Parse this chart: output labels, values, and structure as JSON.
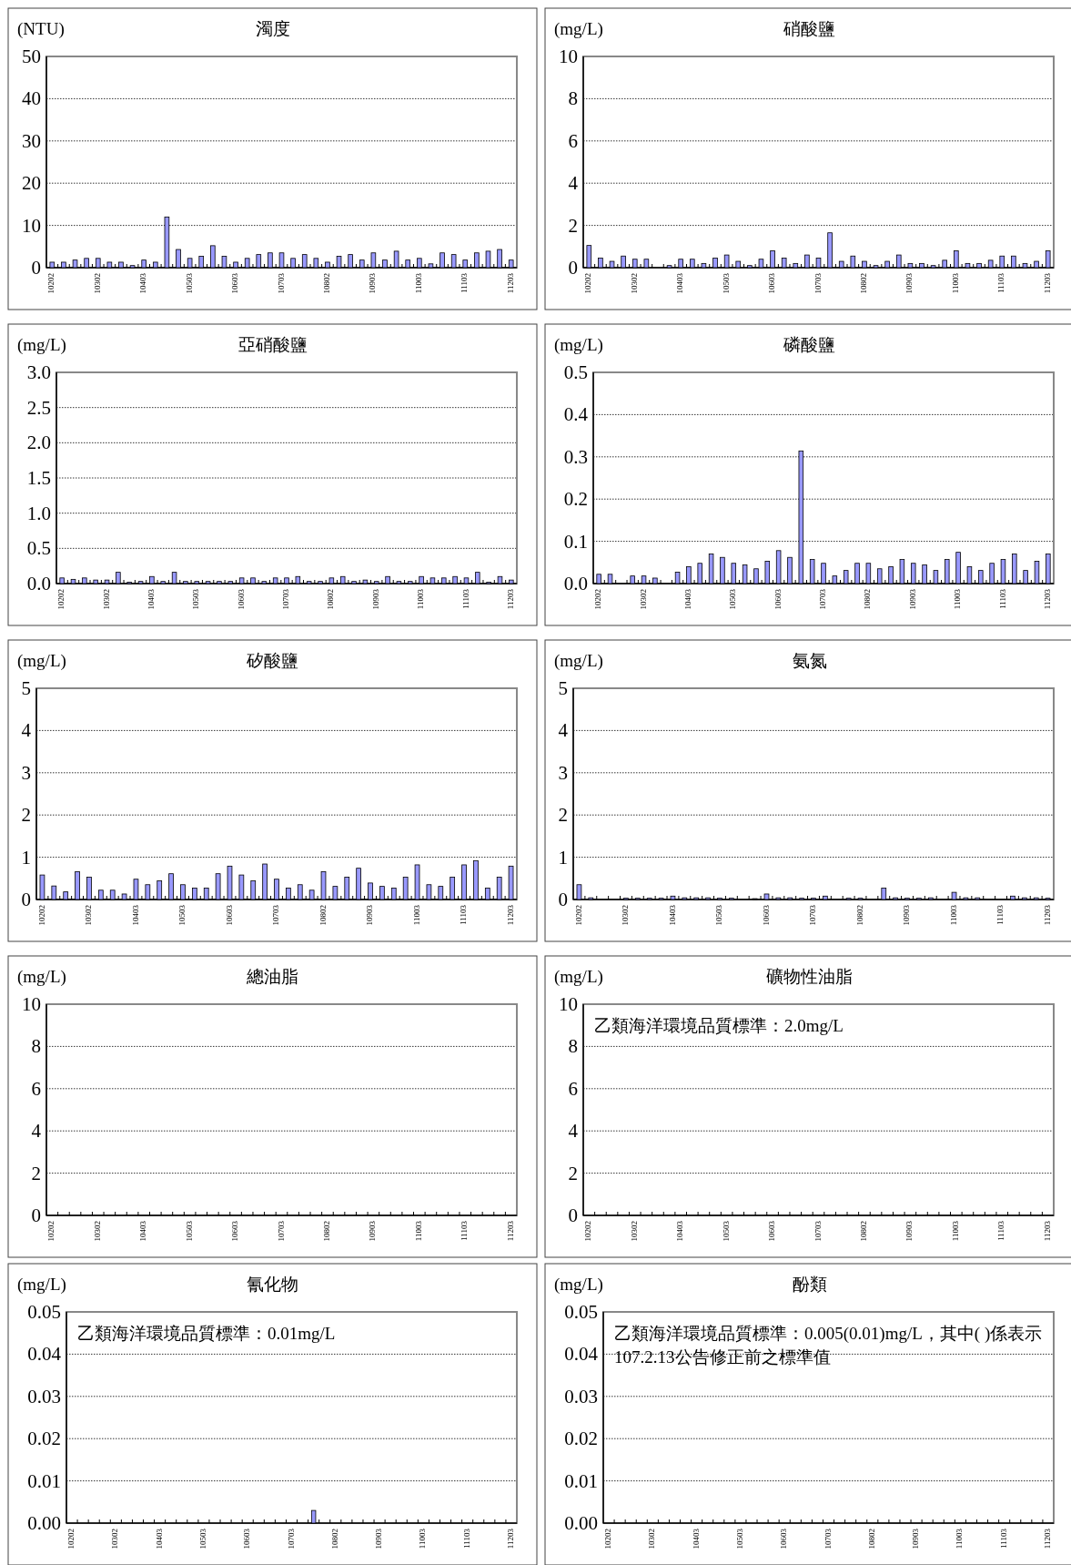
{
  "chart_data": [
    {
      "type": "bar",
      "title": "濁度",
      "ylabel": "(NTU)",
      "color": "#9999ff",
      "grid": "y",
      "ylim": [
        0,
        50
      ],
      "yticks": [
        0,
        10,
        20,
        30,
        40,
        50
      ],
      "categories": [
        "10202",
        null,
        null,
        null,
        "10302",
        null,
        null,
        null,
        "10403",
        null,
        null,
        null,
        "10503",
        null,
        null,
        null,
        "10603",
        null,
        null,
        null,
        "10703",
        null,
        null,
        null,
        "10802",
        null,
        null,
        null,
        "10903",
        null,
        null,
        null,
        "11003",
        null,
        null,
        null,
        "11103",
        null,
        null,
        null,
        "11203"
      ],
      "values": [
        1.3,
        1.3,
        1.8,
        2.2,
        2.2,
        1.3,
        1.3,
        0.5,
        1.8,
        1.3,
        12,
        4.3,
        2.2,
        2.7,
        5.2,
        2.7,
        1.3,
        2.2,
        3.1,
        3.5,
        3.5,
        2.2,
        3.1,
        2.2,
        1.3,
        2.7,
        3.1,
        1.8,
        3.5,
        1.8,
        3.9,
        1.8,
        2.2,
        0.9,
        3.5,
        3.1,
        1.8,
        3.5,
        3.9,
        4.3,
        1.8
      ]
    },
    {
      "type": "bar",
      "title": "硝酸鹽",
      "ylabel": "(mg/L)",
      "color": "#9999ff",
      "grid": "y",
      "ylim": [
        0,
        10
      ],
      "yticks": [
        0,
        2,
        4,
        6,
        8,
        10
      ],
      "categories": [
        "10202",
        null,
        null,
        null,
        "10302",
        null,
        null,
        null,
        "10403",
        null,
        null,
        null,
        "10503",
        null,
        null,
        null,
        "10603",
        null,
        null,
        null,
        "10703",
        null,
        null,
        null,
        "10802",
        null,
        null,
        null,
        "10903",
        null,
        null,
        null,
        "11003",
        null,
        null,
        null,
        "11103",
        null,
        null,
        null,
        "11203"
      ],
      "values": [
        1.05,
        0.45,
        0.3,
        0.55,
        0.4,
        0.4,
        null,
        0.1,
        0.4,
        0.4,
        0.2,
        0.45,
        0.6,
        0.3,
        0.1,
        0.4,
        0.8,
        0.45,
        0.2,
        0.6,
        0.45,
        1.65,
        0.3,
        0.55,
        0.3,
        0.1,
        0.3,
        0.6,
        0.2,
        0.2,
        0.1,
        0.35,
        0.8,
        0.2,
        0.2,
        0.35,
        0.55,
        0.55,
        0.2,
        0.3,
        0.8
      ]
    },
    {
      "type": "bar",
      "title": "亞硝酸鹽",
      "ylabel": "(mg/L)",
      "color": "#9999ff",
      "grid": "y",
      "ylim": [
        0,
        3
      ],
      "yticks": [
        {
          "value": 0,
          "label": "0.0"
        },
        0.5,
        {
          "value": 1,
          "label": "1.0"
        },
        1.5,
        {
          "value": 2,
          "label": "2.0"
        },
        2.5,
        {
          "value": 3,
          "label": "3.0"
        }
      ],
      "categories": [
        "10202",
        null,
        null,
        null,
        "10302",
        null,
        null,
        null,
        "10403",
        null,
        null,
        null,
        "10503",
        null,
        null,
        null,
        "10603",
        null,
        null,
        null,
        "10703",
        null,
        null,
        null,
        "10802",
        null,
        null,
        null,
        "10903",
        null,
        null,
        null,
        "11003",
        null,
        null,
        null,
        "11103",
        null,
        null,
        null,
        "11203"
      ],
      "values": [
        0.08,
        0.06,
        0.08,
        0.05,
        0.05,
        0.16,
        0.02,
        0.03,
        0.1,
        0.03,
        0.16,
        0.03,
        0.03,
        0.03,
        0.03,
        0.03,
        0.08,
        0.08,
        0.03,
        0.08,
        0.08,
        0.1,
        0.03,
        0.03,
        0.08,
        0.1,
        0.03,
        0.05,
        0.03,
        0.1,
        0.03,
        0.03,
        0.1,
        0.08,
        0.08,
        0.1,
        0.08,
        0.16,
        0.02,
        0.1,
        0.05
      ]
    },
    {
      "type": "bar",
      "title": "磷酸鹽",
      "ylabel": "(mg/L)",
      "color": "#9999ff",
      "grid": "y",
      "ylim": [
        0,
        0.5
      ],
      "yticks": [
        {
          "value": 0,
          "label": "0.0"
        },
        0.1,
        0.2,
        0.3,
        0.4,
        0.5
      ],
      "categories": [
        "10202",
        null,
        null,
        null,
        "10302",
        null,
        null,
        null,
        "10403",
        null,
        null,
        null,
        "10503",
        null,
        null,
        null,
        "10603",
        null,
        null,
        null,
        "10703",
        null,
        null,
        null,
        "10802",
        null,
        null,
        null,
        "10903",
        null,
        null,
        null,
        "11003",
        null,
        null,
        null,
        "11103",
        null,
        null,
        null,
        "11203"
      ],
      "values": [
        0.022,
        0.022,
        null,
        0.018,
        0.018,
        0.013,
        null,
        0.027,
        0.04,
        0.048,
        0.07,
        0.062,
        0.048,
        0.044,
        0.035,
        0.053,
        0.078,
        0.062,
        0.314,
        0.057,
        0.048,
        0.018,
        0.031,
        0.048,
        0.048,
        0.035,
        0.04,
        0.057,
        0.048,
        0.044,
        0.031,
        0.057,
        0.074,
        0.04,
        0.031,
        0.048,
        0.057,
        0.07,
        0.031,
        0.053,
        0.07
      ]
    },
    {
      "type": "bar",
      "title": "矽酸鹽",
      "ylabel": "(mg/L)",
      "color": "#9999ff",
      "grid": "y",
      "ylim": [
        0,
        5
      ],
      "yticks": [
        0,
        1,
        2,
        3,
        4,
        5
      ],
      "categories": [
        "10202",
        null,
        null,
        null,
        "10302",
        null,
        null,
        null,
        "10403",
        null,
        null,
        null,
        "10503",
        null,
        null,
        null,
        "10603",
        null,
        null,
        null,
        "10703",
        null,
        null,
        null,
        "10802",
        null,
        null,
        null,
        "10903",
        null,
        null,
        null,
        "11003",
        null,
        null,
        null,
        "11103",
        null,
        null,
        null,
        "11203"
      ],
      "values": [
        0.58,
        0.32,
        0.18,
        0.66,
        0.53,
        0.22,
        0.22,
        0.13,
        0.48,
        0.35,
        0.44,
        0.61,
        0.35,
        0.27,
        0.27,
        0.61,
        0.79,
        0.58,
        0.44,
        0.84,
        0.48,
        0.27,
        0.35,
        0.22,
        0.66,
        0.31,
        0.53,
        0.74,
        0.39,
        0.31,
        0.27,
        0.53,
        0.82,
        0.35,
        0.31,
        0.53,
        0.82,
        0.92,
        0.27,
        0.53,
        0.79
      ]
    },
    {
      "type": "bar",
      "title": "氨氮",
      "ylabel": "(mg/L)",
      "color": "#9999ff",
      "grid": "y",
      "ylim": [
        0,
        5
      ],
      "yticks": [
        0,
        1,
        2,
        3,
        4,
        5
      ],
      "categories": [
        "10202",
        null,
        null,
        null,
        "10302",
        null,
        null,
        null,
        "10403",
        null,
        null,
        null,
        "10503",
        null,
        null,
        null,
        "10603",
        null,
        null,
        null,
        "10703",
        null,
        null,
        null,
        "10802",
        null,
        null,
        null,
        "10903",
        null,
        null,
        null,
        "11003",
        null,
        null,
        null,
        "11103",
        null,
        null,
        null,
        "11203"
      ],
      "values": [
        0.35,
        0.04,
        null,
        null,
        0.03,
        0.03,
        0.03,
        0.03,
        0.08,
        0.04,
        0.04,
        0.04,
        0.03,
        0.03,
        null,
        0.02,
        0.13,
        0.04,
        0.04,
        0.03,
        0.03,
        0.08,
        null,
        0.03,
        0.03,
        null,
        0.27,
        0.04,
        0.03,
        0.03,
        0.04,
        null,
        0.17,
        0.04,
        0.04,
        null,
        null,
        0.08,
        0.04,
        0.04,
        0.03
      ]
    },
    {
      "type": "bar",
      "title": "總油脂",
      "ylabel": "(mg/L)",
      "grid": "y",
      "ylim": [
        0,
        10
      ],
      "yticks": [
        0,
        2,
        4,
        6,
        8,
        10
      ],
      "categories": [
        "10202",
        null,
        null,
        null,
        "10302",
        null,
        null,
        null,
        "10403",
        null,
        null,
        null,
        "10503",
        null,
        null,
        null,
        "10603",
        null,
        null,
        null,
        "10703",
        null,
        null,
        null,
        "10802",
        null,
        null,
        null,
        "10903",
        null,
        null,
        null,
        "11003",
        null,
        null,
        null,
        "11103",
        null,
        null,
        null,
        "11203"
      ],
      "values": [
        null,
        null,
        null,
        null,
        null,
        null,
        null,
        null,
        null,
        null,
        null,
        null,
        null,
        null,
        null,
        null,
        null,
        null,
        null,
        null,
        null,
        null,
        null,
        null,
        null,
        null,
        null,
        null,
        null,
        null,
        null,
        null,
        null,
        null,
        null,
        null,
        null,
        null,
        null,
        null,
        null
      ]
    },
    {
      "type": "bar",
      "title": "礦物性油脂",
      "ylabel": "(mg/L)",
      "grid": "y",
      "ylim": [
        0,
        10
      ],
      "yticks": [
        0,
        2,
        4,
        6,
        8,
        10
      ],
      "annotations": [
        "乙類海洋環境品質標準：2.0mg/L"
      ],
      "categories": [
        "10202",
        null,
        null,
        null,
        "10302",
        null,
        null,
        null,
        "10403",
        null,
        null,
        null,
        "10503",
        null,
        null,
        null,
        "10603",
        null,
        null,
        null,
        "10703",
        null,
        null,
        null,
        "10802",
        null,
        null,
        null,
        "10903",
        null,
        null,
        null,
        "11003",
        null,
        null,
        null,
        "11103",
        null,
        null,
        null,
        "11203"
      ],
      "values": [
        null,
        null,
        null,
        null,
        null,
        null,
        null,
        null,
        null,
        null,
        null,
        null,
        null,
        null,
        null,
        null,
        null,
        null,
        null,
        null,
        null,
        null,
        null,
        null,
        null,
        null,
        null,
        null,
        null,
        null,
        null,
        null,
        null,
        null,
        null,
        null,
        null,
        null,
        null,
        null,
        null
      ]
    },
    {
      "type": "bar",
      "title": "氰化物",
      "ylabel": "(mg/L)",
      "color": "#9999ff",
      "grid": "y",
      "ylim": [
        0,
        0.05
      ],
      "yticks": [
        {
          "value": 0,
          "label": "0.00"
        },
        0.01,
        0.02,
        0.03,
        0.04,
        0.05
      ],
      "annotations": [
        "乙類海洋環境品質標準：0.01mg/L"
      ],
      "categories": [
        "10202",
        null,
        null,
        null,
        "10302",
        null,
        null,
        null,
        "10403",
        null,
        null,
        null,
        "10503",
        null,
        null,
        null,
        "10603",
        null,
        null,
        null,
        "10703",
        null,
        null,
        null,
        "10802",
        null,
        null,
        null,
        "10903",
        null,
        null,
        null,
        "11003",
        null,
        null,
        null,
        "11103",
        null,
        null,
        null,
        "11203"
      ],
      "values": [
        null,
        null,
        null,
        null,
        null,
        null,
        null,
        null,
        null,
        null,
        null,
        null,
        null,
        null,
        null,
        null,
        null,
        null,
        null,
        null,
        null,
        null,
        0.003,
        null,
        null,
        null,
        null,
        null,
        null,
        null,
        null,
        null,
        null,
        null,
        null,
        null,
        null,
        null,
        null,
        null,
        null
      ]
    },
    {
      "type": "bar",
      "title": "酚類",
      "ylabel": "(mg/L)",
      "grid": "y",
      "ylim": [
        0,
        0.05
      ],
      "yticks": [
        {
          "value": 0,
          "label": "0.00"
        },
        0.01,
        0.02,
        0.03,
        0.04,
        0.05
      ],
      "annotations": [
        "乙類海洋環境品質標準：0.005(0.01)mg/L，其中( )係表示107.2.13公告修正前之標準值"
      ],
      "categories": [
        "10202",
        null,
        null,
        null,
        "10302",
        null,
        null,
        null,
        "10403",
        null,
        null,
        null,
        "10503",
        null,
        null,
        null,
        "10603",
        null,
        null,
        null,
        "10703",
        null,
        null,
        null,
        "10802",
        null,
        null,
        null,
        "10903",
        null,
        null,
        null,
        "11003",
        null,
        null,
        null,
        "11103",
        null,
        null,
        null,
        "11203"
      ],
      "values": [
        null,
        null,
        null,
        null,
        null,
        null,
        null,
        null,
        null,
        null,
        null,
        null,
        null,
        null,
        null,
        null,
        null,
        null,
        null,
        null,
        null,
        null,
        null,
        null,
        null,
        null,
        null,
        null,
        null,
        null,
        null,
        null,
        null,
        null,
        null,
        null,
        null,
        null,
        null,
        null,
        null
      ]
    }
  ]
}
